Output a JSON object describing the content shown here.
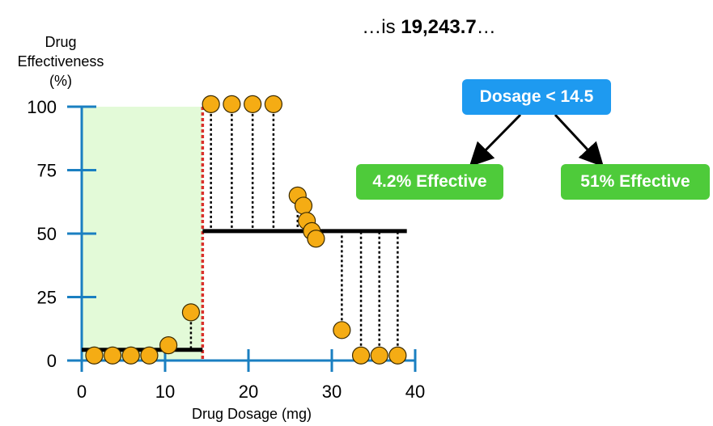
{
  "header": {
    "prefix": "…is ",
    "value": "19,243.7",
    "suffix": "…"
  },
  "chart_data": {
    "type": "scatter",
    "xlabel": "Drug Dosage (mg)",
    "ylabel": "Drug Effectiveness (%)",
    "ylabel_lines": [
      "Drug",
      "Effectiveness",
      "(%)"
    ],
    "xlim": [
      0,
      40
    ],
    "ylim": [
      0,
      100
    ],
    "xticks": [
      0,
      10,
      20,
      30,
      40
    ],
    "yticks": [
      0,
      25,
      50,
      75,
      100
    ],
    "grid": false,
    "points": [
      {
        "x": 1.5,
        "y": 2
      },
      {
        "x": 3.7,
        "y": 2
      },
      {
        "x": 5.9,
        "y": 2
      },
      {
        "x": 8.1,
        "y": 2
      },
      {
        "x": 10.4,
        "y": 6
      },
      {
        "x": 13.1,
        "y": 19
      },
      {
        "x": 15.5,
        "y": 101
      },
      {
        "x": 18.0,
        "y": 101
      },
      {
        "x": 20.5,
        "y": 101
      },
      {
        "x": 23.0,
        "y": 101
      },
      {
        "x": 25.9,
        "y": 65
      },
      {
        "x": 26.6,
        "y": 61
      },
      {
        "x": 27.0,
        "y": 55
      },
      {
        "x": 27.6,
        "y": 51
      },
      {
        "x": 28.1,
        "y": 48
      },
      {
        "x": 31.2,
        "y": 12
      },
      {
        "x": 33.5,
        "y": 2
      },
      {
        "x": 35.7,
        "y": 2
      },
      {
        "x": 37.9,
        "y": 2
      }
    ],
    "threshold_x": 14.5,
    "shaded_region": [
      0,
      14.5
    ],
    "predictions": [
      {
        "from": 0,
        "to": 14.5,
        "y": 4.2
      },
      {
        "from": 14.5,
        "to": 39,
        "y": 51
      }
    ],
    "colors": {
      "point": "#F5AC14",
      "axis": "#1A7FC1",
      "threshold": "#D9302A",
      "shade": "#E3FAD8",
      "prediction": "#000000"
    }
  },
  "tree": {
    "root": "Dosage < 14.5",
    "left": "4.2% Effective",
    "right": "51% Effective",
    "colors": {
      "root": "#1E9AF0",
      "leaf": "#4ECB3A"
    }
  }
}
